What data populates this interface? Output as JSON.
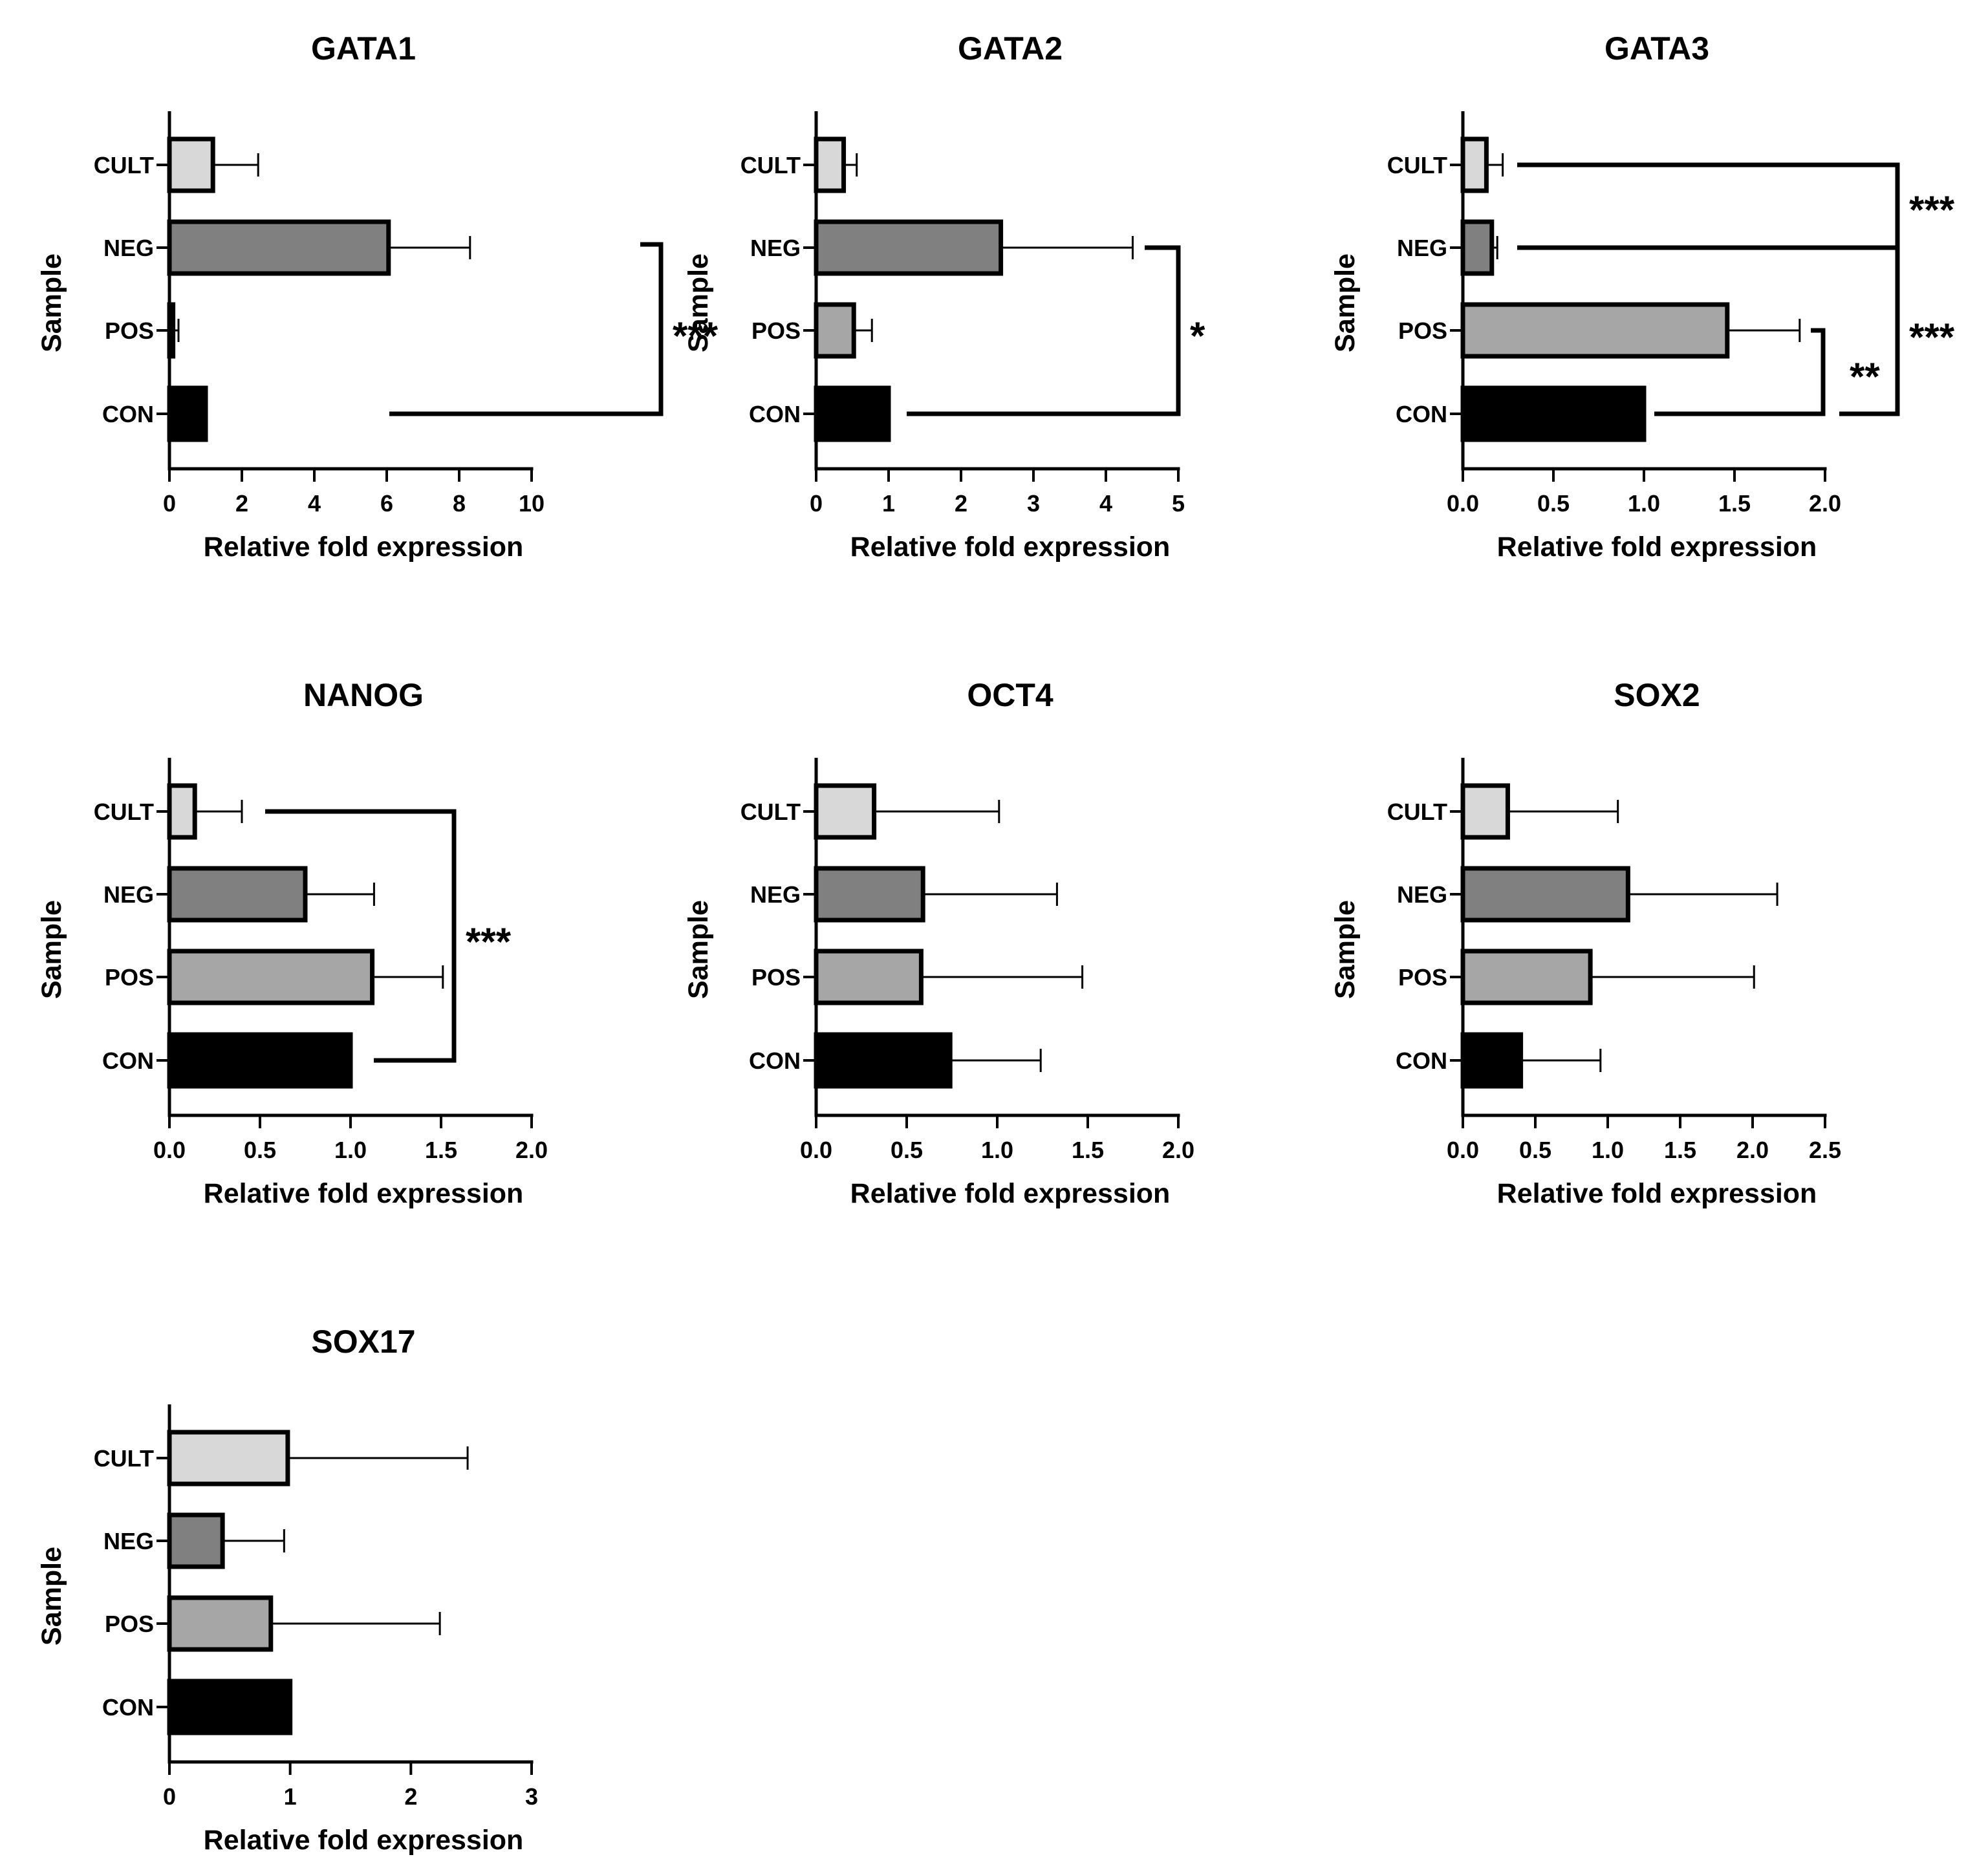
{
  "chart_data": [
    {
      "type": "bar",
      "orientation": "horizontal",
      "title": "GATA1",
      "xlabel": "Relative fold expression",
      "ylabel": "Sample",
      "categories": [
        "CULT",
        "NEG",
        "POS",
        "CON"
      ],
      "values": [
        1.2,
        6.05,
        0.1,
        1.0
      ],
      "errors": [
        1.25,
        2.25,
        0.15,
        0
      ],
      "xlim": [
        0,
        10
      ],
      "xticks": [
        "0",
        "2",
        "4",
        "6",
        "8",
        "10"
      ],
      "colors": [
        "#d8d8d8",
        "#808080",
        "#a6a6a6",
        "#000000"
      ],
      "significance": [
        {
          "from": "NEG",
          "to": "CON",
          "label": "***"
        }
      ]
    },
    {
      "type": "bar",
      "orientation": "horizontal",
      "title": "GATA2",
      "xlabel": "Relative fold expression",
      "ylabel": "Sample",
      "categories": [
        "CULT",
        "NEG",
        "POS",
        "CON"
      ],
      "values": [
        0.38,
        2.55,
        0.52,
        1.0
      ],
      "errors": [
        0.18,
        1.82,
        0.25,
        0
      ],
      "xlim": [
        0,
        5
      ],
      "xticks": [
        "0",
        "1",
        "2",
        "3",
        "4",
        "5"
      ],
      "colors": [
        "#d8d8d8",
        "#808080",
        "#a6a6a6",
        "#000000"
      ],
      "significance": [
        {
          "from": "NEG",
          "to": "CON",
          "label": "*"
        }
      ]
    },
    {
      "type": "bar",
      "orientation": "horizontal",
      "title": "GATA3",
      "xlabel": "Relative fold expression",
      "ylabel": "Sample",
      "categories": [
        "CULT",
        "NEG",
        "POS",
        "CON"
      ],
      "values": [
        0.13,
        0.16,
        1.46,
        1.0
      ],
      "errors": [
        0.09,
        0.03,
        0.4,
        0
      ],
      "xlim": [
        0,
        2
      ],
      "xticks": [
        "0.0",
        "0.5",
        "1.0",
        "1.5",
        "2.0"
      ],
      "colors": [
        "#d8d8d8",
        "#808080",
        "#a6a6a6",
        "#000000"
      ],
      "significance": [
        {
          "from": "POS",
          "to": "CON",
          "label": "**"
        },
        {
          "from": "CULT",
          "to": "NEG",
          "label": "***"
        },
        {
          "from": "NEG",
          "to": "CON",
          "label": "***"
        }
      ]
    },
    {
      "type": "bar",
      "orientation": "horizontal",
      "title": "NANOG",
      "xlabel": "Relative fold expression",
      "ylabel": "Sample",
      "categories": [
        "CULT",
        "NEG",
        "POS",
        "CON"
      ],
      "values": [
        0.14,
        0.75,
        1.12,
        1.0
      ],
      "errors": [
        0.26,
        0.38,
        0.39,
        0
      ],
      "xlim": [
        0,
        2
      ],
      "xticks": [
        "0.0",
        "0.5",
        "1.0",
        "1.5",
        "2.0"
      ],
      "colors": [
        "#d8d8d8",
        "#808080",
        "#a6a6a6",
        "#000000"
      ],
      "significance": [
        {
          "from": "CULT",
          "to": "CON",
          "label": "***"
        }
      ]
    },
    {
      "type": "bar",
      "orientation": "horizontal",
      "title": "OCT4",
      "xlabel": "Relative fold expression",
      "ylabel": "Sample",
      "categories": [
        "CULT",
        "NEG",
        "POS",
        "CON"
      ],
      "values": [
        0.32,
        0.59,
        0.58,
        0.74
      ],
      "errors": [
        0.69,
        0.74,
        0.89,
        0.5
      ],
      "xlim": [
        0,
        2
      ],
      "xticks": [
        "0.0",
        "0.5",
        "1.0",
        "1.5",
        "2.0"
      ],
      "colors": [
        "#d8d8d8",
        "#808080",
        "#a6a6a6",
        "#000000"
      ],
      "significance": []
    },
    {
      "type": "bar",
      "orientation": "horizontal",
      "title": "SOX2",
      "xlabel": "Relative fold expression",
      "ylabel": "Sample",
      "categories": [
        "CULT",
        "NEG",
        "POS",
        "CON"
      ],
      "values": [
        0.31,
        1.14,
        0.88,
        0.4
      ],
      "errors": [
        0.76,
        1.03,
        1.13,
        0.55
      ],
      "xlim": [
        0,
        2.5
      ],
      "xticks": [
        "0.0",
        "0.5",
        "1.0",
        "1.5",
        "2.0",
        "2.5"
      ],
      "colors": [
        "#d8d8d8",
        "#808080",
        "#a6a6a6",
        "#000000"
      ],
      "significance": []
    },
    {
      "type": "bar",
      "orientation": "horizontal",
      "title": "SOX17",
      "xlabel": "Relative fold expression",
      "ylabel": "Sample",
      "categories": [
        "CULT",
        "NEG",
        "POS",
        "CON"
      ],
      "values": [
        0.98,
        0.44,
        0.84,
        1.0
      ],
      "errors": [
        1.49,
        0.51,
        1.4,
        0
      ],
      "xlim": [
        0,
        3
      ],
      "xticks": [
        "0",
        "1",
        "2",
        "3"
      ],
      "colors": [
        "#d8d8d8",
        "#808080",
        "#a6a6a6",
        "#000000"
      ],
      "significance": []
    }
  ]
}
